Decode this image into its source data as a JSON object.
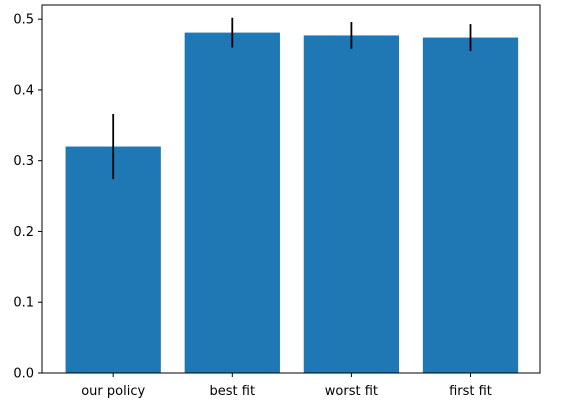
{
  "chart_data": {
    "type": "bar",
    "categories": [
      "our policy",
      "best fit",
      "worst fit",
      "first fit"
    ],
    "values": [
      0.32,
      0.481,
      0.477,
      0.474
    ],
    "error": [
      0.046,
      0.021,
      0.019,
      0.019
    ],
    "ylim": [
      0.0,
      0.52
    ],
    "yticks": [
      "0.0",
      "0.1",
      "0.2",
      "0.3",
      "0.4",
      "0.5"
    ],
    "title": "",
    "xlabel": "",
    "ylabel": "",
    "grid": false,
    "bar_color": "#1f77b4",
    "error_color": "#000000"
  }
}
